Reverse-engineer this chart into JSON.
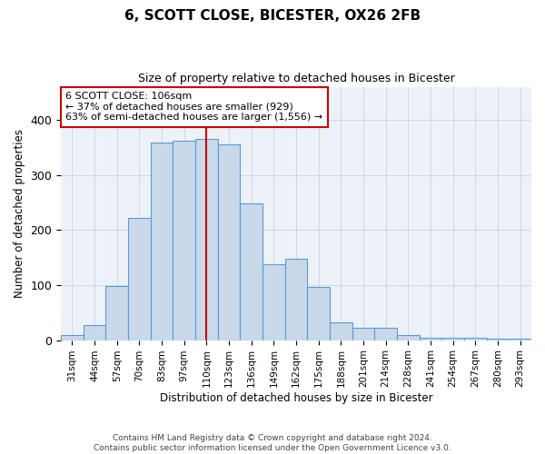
{
  "title": "6, SCOTT CLOSE, BICESTER, OX26 2FB",
  "subtitle": "Size of property relative to detached houses in Bicester",
  "xlabel": "Distribution of detached houses by size in Bicester",
  "ylabel": "Number of detached properties",
  "footer_line1": "Contains HM Land Registry data © Crown copyright and database right 2024.",
  "footer_line2": "Contains public sector information licensed under the Open Government Licence v3.0.",
  "categories": [
    "31sqm",
    "44sqm",
    "57sqm",
    "70sqm",
    "83sqm",
    "97sqm",
    "110sqm",
    "123sqm",
    "136sqm",
    "149sqm",
    "162sqm",
    "175sqm",
    "188sqm",
    "201sqm",
    "214sqm",
    "228sqm",
    "241sqm",
    "254sqm",
    "267sqm",
    "280sqm",
    "293sqm"
  ],
  "values": [
    10,
    28,
    98,
    222,
    358,
    362,
    365,
    355,
    248,
    138,
    148,
    96,
    32,
    22,
    22,
    10,
    5,
    4,
    5,
    2,
    2
  ],
  "bar_color": "#c9d9ea",
  "bar_edge_color": "#5b9bd5",
  "property_line_bin_index": 6.0,
  "annotation_text": "6 SCOTT CLOSE: 106sqm\n← 37% of detached houses are smaller (929)\n63% of semi-detached houses are larger (1,556) →",
  "annotation_box_color": "#cc0000",
  "ylim": [
    0,
    460
  ],
  "grid_color": "#cdd8e8",
  "bg_color": "#edf2f8"
}
